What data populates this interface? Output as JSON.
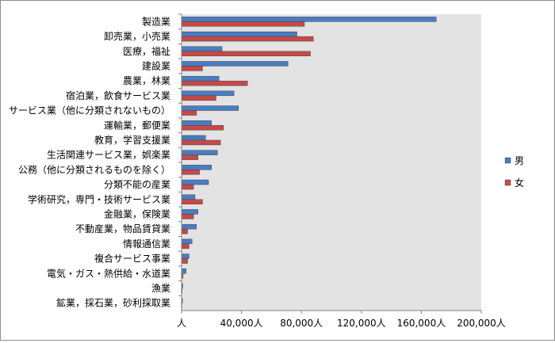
{
  "chart_data": {
    "type": "bar",
    "orientation": "horizontal",
    "categories": [
      "製造業",
      "卸売業，小売業",
      "医療，福祉",
      "建設業",
      "農業，林業",
      "宿泊業，飲食サービス業",
      "サービス業（他に分類されないもの）",
      "運輸業，郵便業",
      "教育，学習支援業",
      "生活関連サービス業，娯楽業",
      "公務（他に分類されるものを除く）",
      "分類不能の産業",
      "学術研究，専門・技術サービス業",
      "金融業，保険業",
      "不動産業，物品賃貸業",
      "情報通信業",
      "複合サービス事業",
      "電気・ガス・熱供給・水道業",
      "漁業",
      "鉱業，採石業，砂利採取業"
    ],
    "series": [
      {
        "name": "男",
        "color": "#4a7cc0",
        "values": [
          170000,
          77000,
          27000,
          71000,
          25000,
          35000,
          38000,
          20000,
          16000,
          24000,
          20000,
          18000,
          9000,
          11000,
          10000,
          7000,
          5000,
          3000,
          800,
          600
        ]
      },
      {
        "name": "女",
        "color": "#c44a48",
        "values": [
          82000,
          88000,
          86000,
          14000,
          44000,
          23000,
          10000,
          28000,
          26000,
          11000,
          12000,
          8000,
          14000,
          8000,
          4000,
          5000,
          4000,
          1000,
          400,
          200
        ]
      }
    ],
    "x_ticks": [
      "人",
      "40,000人",
      "80,000人",
      "120,000人",
      "160,000人",
      "200,000人"
    ],
    "xlim": [
      0,
      200000
    ],
    "x_step": 40000,
    "grid": false,
    "legend_position": "right",
    "plot_background": "#e3e3e3"
  }
}
